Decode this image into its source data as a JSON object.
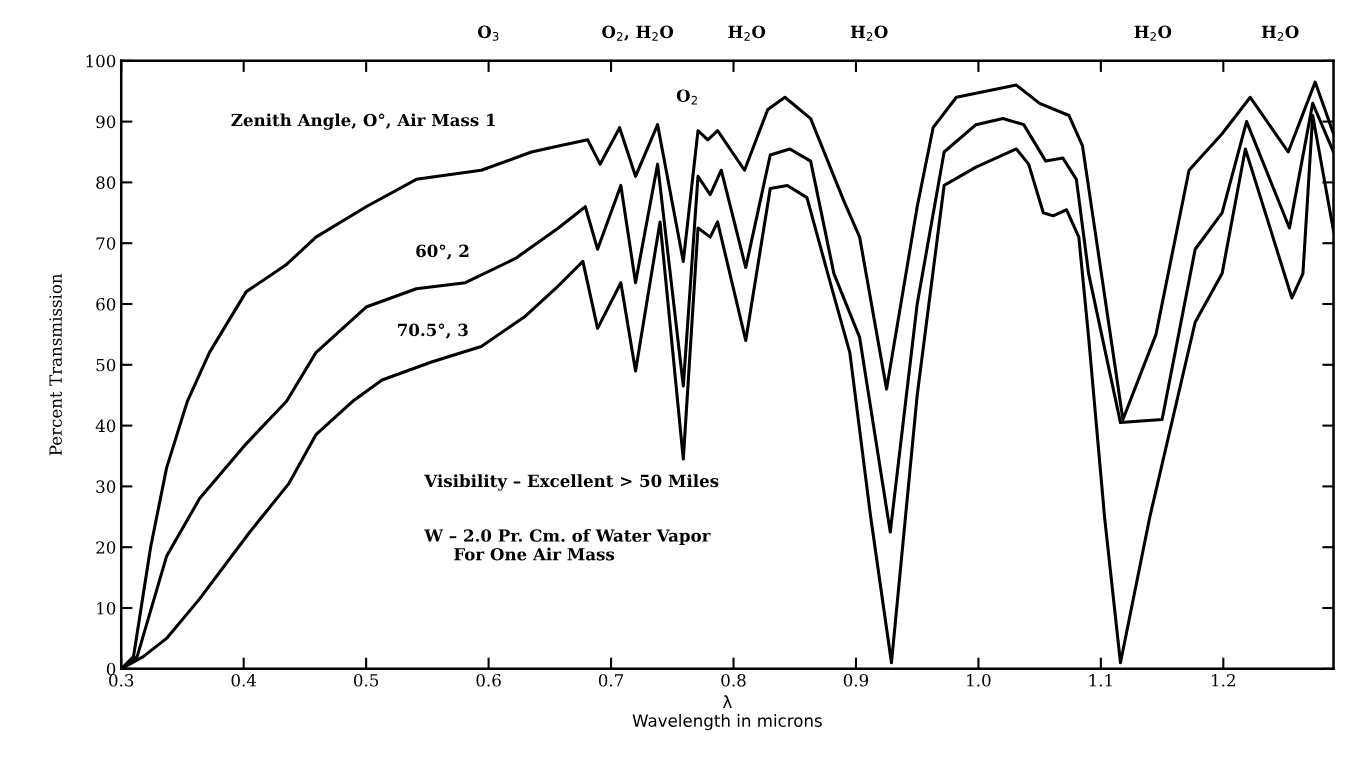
{
  "chart_data": {
    "type": "line",
    "xlabel": "λ\nWavelength in microns",
    "ylabel": "Percent Transmission",
    "xlim": [
      0.3,
      1.29
    ],
    "ylim": [
      0,
      100
    ],
    "xticks": [
      0.3,
      0.4,
      0.5,
      0.6,
      0.7,
      0.8,
      0.9,
      {
        "value": 1.0,
        "label": "1.0"
      },
      1.1,
      1.2
    ],
    "yticks": [
      0,
      10,
      20,
      30,
      40,
      50,
      60,
      70,
      80,
      90,
      100
    ],
    "grid": false,
    "marker": "none",
    "line_style": "solid",
    "series": [
      {
        "name": "Zenith Angle, O°, Air Mass 1",
        "color": "#000000",
        "x": [
          0.3,
          0.31,
          0.324,
          0.337,
          0.354,
          0.372,
          0.402,
          0.435,
          0.459,
          0.5,
          0.541,
          0.594,
          0.635,
          0.657,
          0.681,
          0.691,
          0.707,
          0.72,
          0.738,
          0.759,
          0.771,
          0.779,
          0.787,
          0.809,
          0.828,
          0.842,
          0.863,
          0.89,
          0.903,
          0.925,
          0.95,
          0.963,
          0.982,
          1.031,
          1.05,
          1.074,
          1.085,
          1.096,
          1.118,
          1.145,
          1.172,
          1.199,
          1.222,
          1.253,
          1.275,
          1.29
        ],
        "values": [
          0,
          2,
          20,
          33,
          44,
          52,
          62,
          66.5,
          71,
          76,
          80.5,
          82,
          85,
          86,
          87,
          83,
          89,
          81,
          89.5,
          67,
          88.5,
          87,
          88.5,
          82,
          92,
          94,
          90.5,
          77,
          71,
          46,
          76,
          89,
          94,
          96,
          93,
          91,
          86,
          71,
          41,
          55,
          82,
          88,
          94,
          85,
          96.5,
          88
        ]
      },
      {
        "name": "60°, 2",
        "color": "#000000",
        "x": [
          0.3,
          0.313,
          0.337,
          0.364,
          0.402,
          0.435,
          0.459,
          0.5,
          0.541,
          0.581,
          0.622,
          0.657,
          0.679,
          0.689,
          0.708,
          0.72,
          0.738,
          0.759,
          0.771,
          0.781,
          0.79,
          0.81,
          0.83,
          0.846,
          0.863,
          0.882,
          0.903,
          0.928,
          0.95,
          0.972,
          0.998,
          1.02,
          1.037,
          1.055,
          1.069,
          1.08,
          1.09,
          1.116,
          1.15,
          1.177,
          1.199,
          1.219,
          1.254,
          1.273,
          1.29
        ],
        "values": [
          0,
          2,
          18.5,
          28,
          37,
          44,
          52,
          59.5,
          62.5,
          63.5,
          67.5,
          72.5,
          76,
          69,
          79.5,
          63.5,
          83,
          46.5,
          81,
          78,
          82,
          66,
          84.5,
          85.5,
          83.5,
          65,
          54.5,
          22.5,
          60,
          85,
          89.5,
          90.5,
          89.5,
          83.5,
          84,
          80.5,
          65,
          40.5,
          41,
          69,
          75,
          90,
          72.5,
          93,
          85
        ]
      },
      {
        "name": "70.5°, 3",
        "color": "#000000",
        "x": [
          0.3,
          0.318,
          0.337,
          0.364,
          0.405,
          0.437,
          0.459,
          0.489,
          0.513,
          0.554,
          0.594,
          0.63,
          0.657,
          0.677,
          0.689,
          0.708,
          0.72,
          0.74,
          0.759,
          0.771,
          0.781,
          0.787,
          0.81,
          0.83,
          0.844,
          0.86,
          0.879,
          0.895,
          0.912,
          0.929,
          0.95,
          0.972,
          0.998,
          1.031,
          1.041,
          1.053,
          1.061,
          1.072,
          1.082,
          1.09,
          1.103,
          1.116,
          1.14,
          1.177,
          1.199,
          1.218,
          1.256,
          1.265,
          1.273,
          1.29
        ],
        "values": [
          0,
          2,
          5,
          11.5,
          22.5,
          30.5,
          38.5,
          44,
          47.5,
          50.5,
          53,
          58,
          63,
          67,
          56,
          63.5,
          49,
          73.5,
          34.5,
          72.5,
          71,
          73.5,
          54,
          79,
          79.5,
          77.5,
          63.5,
          52,
          25,
          1,
          45,
          79.5,
          82.5,
          85.5,
          83,
          75,
          74.5,
          75.5,
          71,
          54.5,
          25,
          1,
          25,
          57,
          65,
          85.5,
          61,
          65,
          91,
          72
        ]
      }
    ],
    "annotations": [
      "O$_{3}$",
      "O$_{2}$, H$_{2}$O",
      "H$_{2}$O",
      "H$_{2}$O",
      "H$_{2}$O",
      "H$_{2}$O",
      "O$_{2}$",
      "Visibility – Excellent > 50 Miles",
      "W – 2.0 Pr. Cm. of Water Vapor\n     For One Air Mass"
    ]
  }
}
